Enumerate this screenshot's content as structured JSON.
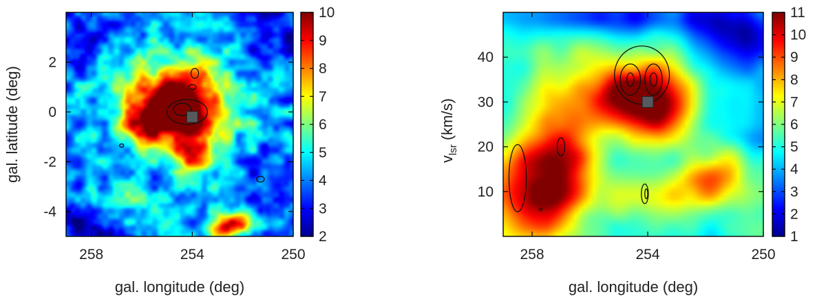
{
  "chart_data": [
    {
      "type": "heatmap",
      "title": "",
      "xlabel": "gal. longitude (deg)",
      "ylabel": "gal. latitude (deg)",
      "xlim": [
        259,
        250
      ],
      "ylim": [
        -5,
        4
      ],
      "x_ticks": [
        "258",
        "254",
        "250"
      ],
      "y_ticks": [
        "2",
        "0",
        "-2",
        "-4"
      ],
      "colorbar": {
        "min": 2,
        "max": 10,
        "ticks": [
          "10",
          "9",
          "8",
          "7",
          "6",
          "5",
          "4",
          "3",
          "2"
        ]
      },
      "colormap": "jet",
      "background_level": 4.3,
      "features": [
        {
          "l": 255.2,
          "b": 0.3,
          "sigma_l": 1.1,
          "sigma_b": 0.9,
          "amp": 5.4
        },
        {
          "l": 254.0,
          "b": -0.6,
          "sigma_l": 0.9,
          "sigma_b": 0.9,
          "amp": 4.3
        },
        {
          "l": 256.0,
          "b": -0.6,
          "sigma_l": 0.6,
          "sigma_b": 0.5,
          "amp": 3.0
        },
        {
          "l": 254.2,
          "b": 1.5,
          "sigma_l": 0.7,
          "sigma_b": 0.6,
          "amp": 2.5
        },
        {
          "l": 254.0,
          "b": -2.0,
          "sigma_l": 0.5,
          "sigma_b": 0.5,
          "amp": 2.4
        },
        {
          "l": 252.2,
          "b": -4.5,
          "sigma_l": 0.6,
          "sigma_b": 0.4,
          "amp": 3.6
        },
        {
          "l": 253.0,
          "b": -4.7,
          "sigma_l": 0.5,
          "sigma_b": 0.3,
          "amp": 2.8
        },
        {
          "l": 256.5,
          "b": -3.8,
          "sigma_l": 1.0,
          "sigma_b": 0.6,
          "amp": 1.3
        },
        {
          "l": 256.5,
          "b": 2.6,
          "sigma_l": 0.9,
          "sigma_b": 0.6,
          "amp": 1.2
        },
        {
          "l": 252.5,
          "b": 0.9,
          "sigma_l": 0.9,
          "sigma_b": 1.3,
          "amp": 1.1
        },
        {
          "l": 258.3,
          "b": -4.5,
          "sigma_l": 1.2,
          "sigma_b": 0.8,
          "amp": -1.8
        },
        {
          "l": 257.6,
          "b": 3.2,
          "sigma_l": 1.1,
          "sigma_b": 0.8,
          "amp": -1.6
        },
        {
          "l": 251.0,
          "b": 3.0,
          "sigma_l": 1.1,
          "sigma_b": 1.1,
          "amp": -1.5
        },
        {
          "l": 250.8,
          "b": -3.2,
          "sigma_l": 0.9,
          "sigma_b": 1.2,
          "amp": -1.3
        }
      ],
      "marker": {
        "shape": "square",
        "l": 254.0,
        "b": -0.2
      },
      "contours": [
        {
          "l": 254.2,
          "b": 0.0,
          "rl": 0.8,
          "rb": 0.5
        },
        {
          "l": 254.4,
          "b": 0.1,
          "rl": 0.35,
          "rb": 0.25
        },
        {
          "l": 253.9,
          "b": 1.55,
          "rl": 0.15,
          "rb": 0.2
        },
        {
          "l": 254.0,
          "b": 1.0,
          "rl": 0.15,
          "rb": 0.1
        },
        {
          "l": 256.8,
          "b": -1.35,
          "rl": 0.08,
          "rb": 0.07
        },
        {
          "l": 251.3,
          "b": -2.7,
          "rl": 0.15,
          "rb": 0.12
        }
      ]
    },
    {
      "type": "heatmap",
      "title": "",
      "xlabel": "gal. longitude (deg)",
      "ylabel": "v",
      "ylabel_subscript": "lsr",
      "ylabel_unit": "(km/s)",
      "xlim": [
        259,
        250
      ],
      "ylim": [
        0,
        50
      ],
      "x_ticks": [
        "258",
        "254",
        "250"
      ],
      "y_ticks": [
        "40",
        "30",
        "20",
        "10"
      ],
      "colorbar": {
        "min": 1,
        "max": 11,
        "ticks": [
          "11",
          "10",
          "9",
          "8",
          "7",
          "6",
          "5",
          "4",
          "3",
          "2",
          "1"
        ]
      },
      "colormap": "jet",
      "background_level": 5.0,
      "features": [
        {
          "l": 257.9,
          "v": 12,
          "sigma_l": 1.1,
          "sigma_v": 8,
          "amp": 5.5
        },
        {
          "l": 256.8,
          "v": 20,
          "sigma_l": 0.8,
          "sigma_v": 9,
          "amp": 3.5
        },
        {
          "l": 254.0,
          "v": 32,
          "sigma_l": 1.1,
          "sigma_v": 6,
          "amp": 5.0
        },
        {
          "l": 255.3,
          "v": 31,
          "sigma_l": 0.9,
          "sigma_v": 4,
          "amp": 3.2
        },
        {
          "l": 253.5,
          "v": 27,
          "sigma_l": 0.6,
          "sigma_v": 4,
          "amp": 2.0
        },
        {
          "l": 252.0,
          "v": 12,
          "sigma_l": 1.0,
          "sigma_v": 4,
          "amp": 2.3
        },
        {
          "l": 251.1,
          "v": 18,
          "sigma_l": 0.4,
          "sigma_v": 3,
          "amp": 1.6
        },
        {
          "l": 254.0,
          "v": 8,
          "sigma_l": 2.0,
          "sigma_v": 4,
          "amp": 2.0
        },
        {
          "l": 250.6,
          "v": 45,
          "sigma_l": 1.3,
          "sigma_v": 5,
          "amp": -3.0
        },
        {
          "l": 253.5,
          "v": 49,
          "sigma_l": 2.0,
          "sigma_v": 3,
          "amp": -2.5
        },
        {
          "l": 256.5,
          "v": 48,
          "sigma_l": 1.5,
          "sigma_v": 3,
          "amp": -1.2
        }
      ],
      "marker": {
        "shape": "square",
        "l": 254.0,
        "v": 30
      },
      "contours": [
        {
          "l": 254.2,
          "v": 36,
          "rl": 0.95,
          "rv": 6.5
        },
        {
          "l": 254.6,
          "v": 35,
          "rl": 0.35,
          "rv": 3.5
        },
        {
          "l": 253.8,
          "v": 35,
          "rl": 0.3,
          "rv": 3.5
        },
        {
          "l": 254.6,
          "v": 35,
          "rl": 0.12,
          "rv": 1.5
        },
        {
          "l": 253.8,
          "v": 35,
          "rl": 0.12,
          "rv": 1.5
        },
        {
          "l": 258.5,
          "v": 13,
          "rl": 0.3,
          "rv": 7.5
        },
        {
          "l": 257.0,
          "v": 20,
          "rl": 0.13,
          "rv": 2.0
        },
        {
          "l": 254.1,
          "v": 9.5,
          "rl": 0.12,
          "rv": 2.2
        },
        {
          "l": 254.05,
          "v": 9.5,
          "rl": 0.05,
          "rv": 1.1
        },
        {
          "l": 257.7,
          "v": 6.0,
          "rl": 0.05,
          "rv": 0.3
        }
      ]
    }
  ]
}
